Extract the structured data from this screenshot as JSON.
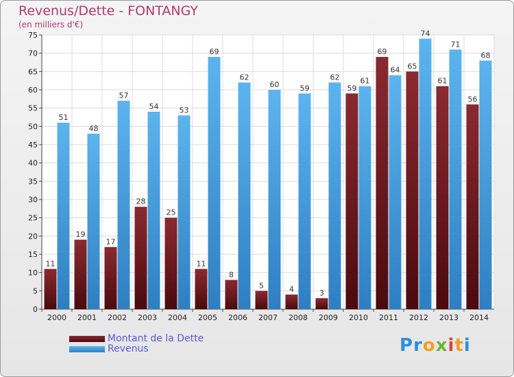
{
  "title": "Revenus/Dette - FONTANGY",
  "subtitle": "(en milliers d'€)",
  "logo": {
    "text": "Proxiti",
    "letters": [
      "P",
      "r",
      "o",
      "x",
      "i",
      "t",
      "i"
    ],
    "colors": [
      "#2f8fd8",
      "#2f8fd8",
      "#f0a020",
      "#6ab830",
      "#e04040",
      "#f0a020",
      "#2f8fd8"
    ]
  },
  "legend": {
    "items": [
      {
        "label": "Montant de la Dette",
        "color": "#7a1f24"
      },
      {
        "label": "Revenus",
        "color": "#4aa2e0"
      }
    ]
  },
  "chart_data": {
    "type": "bar",
    "title": "Revenus/Dette - FONTANGY",
    "subtitle": "(en milliers d'€)",
    "categories": [
      "2000",
      "2001",
      "2002",
      "2003",
      "2004",
      "2005",
      "2006",
      "2007",
      "2008",
      "2009",
      "2010",
      "2011",
      "2012",
      "2013",
      "2014"
    ],
    "series": [
      {
        "name": "Montant de la Dette",
        "color": "#7a1f24",
        "values": [
          11,
          19,
          17,
          28,
          25,
          11,
          8,
          5,
          4,
          3,
          59,
          69,
          65,
          61,
          56
        ]
      },
      {
        "name": "Revenus",
        "color": "#4aa2e0",
        "values": [
          51,
          48,
          57,
          54,
          53,
          69,
          62,
          60,
          59,
          62,
          61,
          64,
          74,
          71,
          68
        ]
      }
    ],
    "ylim": [
      0,
      75
    ],
    "yticks": [
      0,
      5,
      10,
      15,
      20,
      25,
      30,
      35,
      40,
      45,
      50,
      55,
      60,
      65,
      70,
      75
    ],
    "grid": true,
    "legend_position": "bottom-left"
  }
}
